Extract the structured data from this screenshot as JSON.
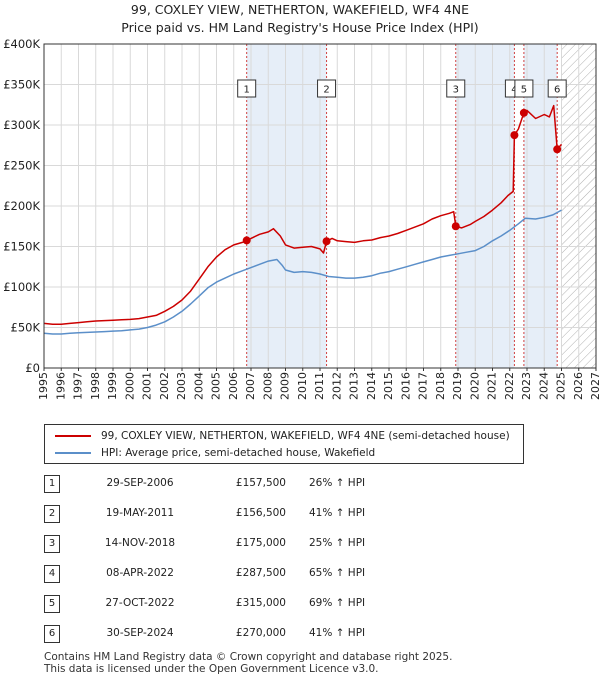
{
  "title_line1": "99, COXLEY VIEW, NETHERTON, WAKEFIELD, WF4 4NE",
  "title_line2": "Price paid vs. HM Land Registry's House Price Index (HPI)",
  "colors": {
    "red": "#cc0000",
    "blue": "#5b8fc9",
    "shade": "#e6eef8",
    "grid": "#d9d9d9"
  },
  "chart_data": {
    "type": "line",
    "xlim": [
      1995,
      2027
    ],
    "ylim": [
      0,
      400000
    ],
    "y_ticks": [
      0,
      50000,
      100000,
      150000,
      200000,
      250000,
      300000,
      350000,
      400000
    ],
    "y_tick_labels": [
      "£0",
      "£50K",
      "£100K",
      "£150K",
      "£200K",
      "£250K",
      "£300K",
      "£350K",
      "£400K"
    ],
    "x_ticks": [
      1995,
      1996,
      1997,
      1998,
      1999,
      2000,
      2001,
      2002,
      2003,
      2004,
      2005,
      2006,
      2007,
      2008,
      2009,
      2010,
      2011,
      2012,
      2013,
      2014,
      2015,
      2016,
      2017,
      2018,
      2019,
      2020,
      2021,
      2022,
      2023,
      2024,
      2025,
      2026,
      2027
    ],
    "hatched_from": 2025.0,
    "shaded_spans": [
      [
        2006.75,
        2011.38
      ],
      [
        2018.87,
        2022.27
      ],
      [
        2022.82,
        2024.75
      ]
    ],
    "series": [
      {
        "name": "99, COXLEY VIEW, NETHERTON, WAKEFIELD, WF4 4NE (semi-detached house)",
        "color": "#cc0000",
        "points": [
          [
            1995.0,
            55000
          ],
          [
            1995.5,
            54000
          ],
          [
            1996.0,
            54000
          ],
          [
            1996.5,
            55000
          ],
          [
            1997.0,
            56000
          ],
          [
            1997.5,
            57000
          ],
          [
            1998.0,
            58000
          ],
          [
            1998.5,
            58500
          ],
          [
            1999.0,
            59000
          ],
          [
            1999.5,
            59500
          ],
          [
            2000.0,
            60000
          ],
          [
            2000.5,
            61000
          ],
          [
            2001.0,
            63000
          ],
          [
            2001.5,
            65000
          ],
          [
            2002.0,
            70000
          ],
          [
            2002.5,
            76000
          ],
          [
            2003.0,
            84000
          ],
          [
            2003.5,
            95000
          ],
          [
            2004.0,
            110000
          ],
          [
            2004.5,
            125000
          ],
          [
            2005.0,
            137000
          ],
          [
            2005.5,
            146000
          ],
          [
            2006.0,
            152000
          ],
          [
            2006.5,
            155000
          ],
          [
            2006.75,
            157500
          ],
          [
            2007.0,
            160000
          ],
          [
            2007.5,
            165000
          ],
          [
            2008.0,
            168000
          ],
          [
            2008.3,
            172000
          ],
          [
            2008.7,
            163000
          ],
          [
            2009.0,
            152000
          ],
          [
            2009.5,
            148000
          ],
          [
            2010.0,
            149000
          ],
          [
            2010.5,
            150000
          ],
          [
            2011.0,
            147000
          ],
          [
            2011.2,
            142000
          ],
          [
            2011.38,
            156500
          ],
          [
            2011.7,
            160000
          ],
          [
            2012.0,
            157000
          ],
          [
            2012.5,
            156000
          ],
          [
            2013.0,
            155000
          ],
          [
            2013.5,
            157000
          ],
          [
            2014.0,
            158000
          ],
          [
            2014.5,
            161000
          ],
          [
            2015.0,
            163000
          ],
          [
            2015.5,
            166000
          ],
          [
            2016.0,
            170000
          ],
          [
            2016.5,
            174000
          ],
          [
            2017.0,
            178000
          ],
          [
            2017.5,
            184000
          ],
          [
            2018.0,
            188000
          ],
          [
            2018.5,
            191000
          ],
          [
            2018.75,
            193000
          ],
          [
            2018.87,
            175000
          ],
          [
            2019.2,
            173000
          ],
          [
            2019.7,
            177000
          ],
          [
            2020.0,
            181000
          ],
          [
            2020.5,
            187000
          ],
          [
            2021.0,
            195000
          ],
          [
            2021.5,
            204000
          ],
          [
            2021.9,
            213000
          ],
          [
            2022.2,
            218000
          ],
          [
            2022.27,
            287500
          ],
          [
            2022.5,
            295000
          ],
          [
            2022.82,
            315000
          ],
          [
            2023.0,
            318000
          ],
          [
            2023.5,
            308000
          ],
          [
            2024.0,
            313000
          ],
          [
            2024.3,
            310000
          ],
          [
            2024.55,
            324000
          ],
          [
            2024.75,
            270000
          ],
          [
            2025.0,
            276000
          ]
        ]
      },
      {
        "name": "HPI: Average price, semi-detached house, Wakefield",
        "color": "#5b8fc9",
        "points": [
          [
            1995.0,
            43000
          ],
          [
            1995.5,
            42000
          ],
          [
            1996.0,
            42000
          ],
          [
            1996.5,
            43000
          ],
          [
            1997.0,
            43500
          ],
          [
            1997.5,
            44000
          ],
          [
            1998.0,
            44500
          ],
          [
            1998.5,
            45000
          ],
          [
            1999.0,
            45500
          ],
          [
            1999.5,
            46000
          ],
          [
            2000.0,
            47000
          ],
          [
            2000.5,
            48000
          ],
          [
            2001.0,
            50000
          ],
          [
            2001.5,
            53000
          ],
          [
            2002.0,
            57000
          ],
          [
            2002.5,
            63000
          ],
          [
            2003.0,
            70000
          ],
          [
            2003.5,
            79000
          ],
          [
            2004.0,
            89000
          ],
          [
            2004.5,
            99000
          ],
          [
            2005.0,
            106000
          ],
          [
            2005.5,
            111000
          ],
          [
            2006.0,
            116000
          ],
          [
            2006.5,
            120000
          ],
          [
            2007.0,
            124000
          ],
          [
            2007.5,
            128000
          ],
          [
            2008.0,
            132000
          ],
          [
            2008.5,
            134000
          ],
          [
            2008.8,
            127000
          ],
          [
            2009.0,
            121000
          ],
          [
            2009.5,
            118000
          ],
          [
            2010.0,
            119000
          ],
          [
            2010.5,
            118000
          ],
          [
            2011.0,
            116000
          ],
          [
            2011.5,
            113000
          ],
          [
            2012.0,
            112000
          ],
          [
            2012.5,
            111000
          ],
          [
            2013.0,
            111000
          ],
          [
            2013.5,
            112000
          ],
          [
            2014.0,
            114000
          ],
          [
            2014.5,
            117000
          ],
          [
            2015.0,
            119000
          ],
          [
            2015.5,
            122000
          ],
          [
            2016.0,
            125000
          ],
          [
            2016.5,
            128000
          ],
          [
            2017.0,
            131000
          ],
          [
            2017.5,
            134000
          ],
          [
            2018.0,
            137000
          ],
          [
            2018.5,
            139000
          ],
          [
            2019.0,
            141000
          ],
          [
            2019.5,
            143000
          ],
          [
            2020.0,
            145000
          ],
          [
            2020.5,
            150000
          ],
          [
            2021.0,
            157000
          ],
          [
            2021.5,
            163000
          ],
          [
            2022.0,
            170000
          ],
          [
            2022.5,
            178000
          ],
          [
            2022.9,
            185000
          ],
          [
            2023.5,
            184000
          ],
          [
            2024.0,
            186000
          ],
          [
            2024.5,
            189000
          ],
          [
            2025.0,
            195000
          ]
        ]
      }
    ],
    "markers": [
      {
        "label": "1",
        "x": 2006.75,
        "y": 157500
      },
      {
        "label": "2",
        "x": 2011.38,
        "y": 156500
      },
      {
        "label": "3",
        "x": 2018.87,
        "y": 175000
      },
      {
        "label": "4",
        "x": 2022.27,
        "y": 287500
      },
      {
        "label": "5",
        "x": 2022.82,
        "y": 315000
      },
      {
        "label": "6",
        "x": 2024.75,
        "y": 270000
      }
    ]
  },
  "legend": [
    {
      "label": "99, COXLEY VIEW, NETHERTON, WAKEFIELD, WF4 4NE (semi-detached house)",
      "color": "#cc0000"
    },
    {
      "label": "HPI: Average price, semi-detached house, Wakefield",
      "color": "#5b8fc9"
    }
  ],
  "transactions": [
    {
      "num": "1",
      "date": "29-SEP-2006",
      "price": "£157,500",
      "hpi": "26% ↑ HPI"
    },
    {
      "num": "2",
      "date": "19-MAY-2011",
      "price": "£156,500",
      "hpi": "41% ↑ HPI"
    },
    {
      "num": "3",
      "date": "14-NOV-2018",
      "price": "£175,000",
      "hpi": "25% ↑ HPI"
    },
    {
      "num": "4",
      "date": "08-APR-2022",
      "price": "£287,500",
      "hpi": "65% ↑ HPI"
    },
    {
      "num": "5",
      "date": "27-OCT-2022",
      "price": "£315,000",
      "hpi": "69% ↑ HPI"
    },
    {
      "num": "6",
      "date": "30-SEP-2024",
      "price": "£270,000",
      "hpi": "41% ↑ HPI"
    }
  ],
  "footer": {
    "line1": "Contains HM Land Registry data © Crown copyright and database right 2025.",
    "line2": "This data is licensed under the Open Government Licence v3.0."
  }
}
